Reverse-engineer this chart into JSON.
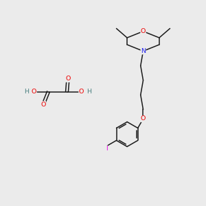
{
  "bg_color": "#ebebeb",
  "bond_color": "#1a1a1a",
  "atom_colors": {
    "O": "#ee0000",
    "N": "#2020ee",
    "I": "#ee00ee",
    "H": "#4a8080",
    "C": "#1a1a1a"
  },
  "font_size": 6.8,
  "line_width": 1.1,
  "figsize": [
    3.0,
    3.0
  ],
  "dpi": 100
}
